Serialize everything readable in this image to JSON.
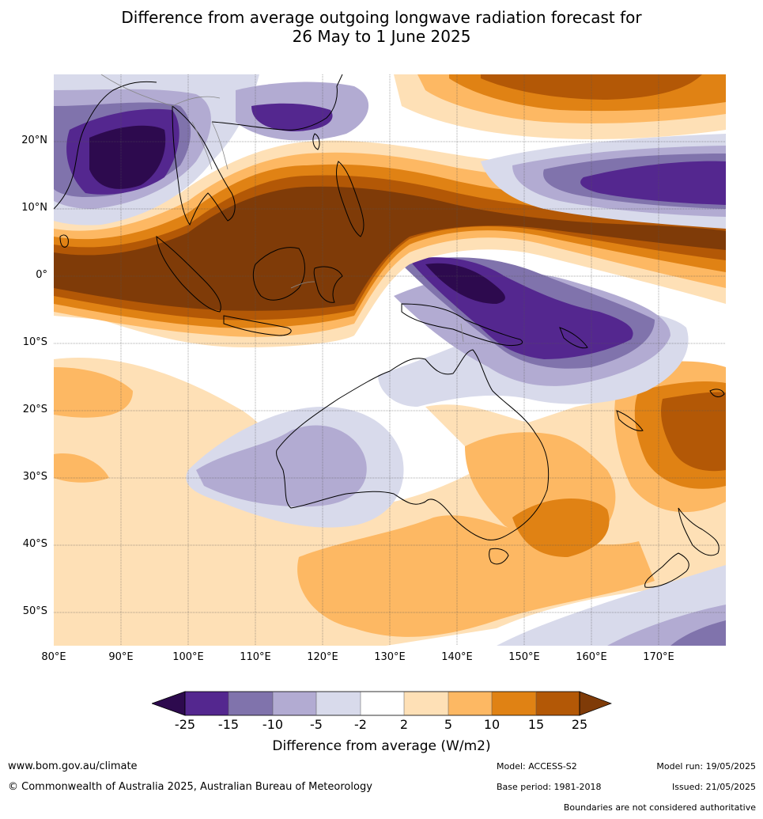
{
  "title_line1": "Difference from average outgoing longwave radiation forecast for",
  "title_line2": "26 May to 1 June 2025",
  "lat_labels": [
    "20°N",
    "10°N",
    "0°",
    "10°S",
    "20°S",
    "30°S",
    "40°S",
    "50°S"
  ],
  "lon_labels": [
    "80°E",
    "90°E",
    "100°E",
    "110°E",
    "120°E",
    "130°E",
    "140°E",
    "150°E",
    "160°E",
    "170°E"
  ],
  "map_extent": {
    "lon_min": 80,
    "lon_max": 180,
    "lat_min": -55,
    "lat_max": 30
  },
  "colorbar": {
    "label": "Difference from average (W/m2)",
    "ticks": [
      "-25",
      "-15",
      "-10",
      "-5",
      "-2",
      "2",
      "5",
      "10",
      "15",
      "25"
    ],
    "tick_values": [
      -25,
      -15,
      -10,
      -5,
      -2,
      2,
      5,
      10,
      15,
      25
    ],
    "colors": {
      "below_min": "#2d0a4e",
      "n25_n15": "#54278f",
      "n15_n10": "#8073ac",
      "n10_n5": "#b2abd2",
      "n5_n2": "#d8daeb",
      "n2_p2": "#ffffff",
      "p2_p5": "#fee0b6",
      "p5_p10": "#fdb863",
      "p10_p15": "#e08214",
      "p15_p25": "#b35806",
      "above_max": "#7f3b08"
    }
  },
  "footer": {
    "website": "www.bom.gov.au/climate",
    "copyright": "© Commonwealth of Australia 2025, Australian Bureau of Meteorology",
    "model": "Model: ACCESS-S2",
    "base_period": "Base period: 1981-2018",
    "model_run": "Model run: 19/05/2025",
    "issued": "Issued: 21/05/2025",
    "disclaimer": "Boundaries are not considered authoritative"
  }
}
